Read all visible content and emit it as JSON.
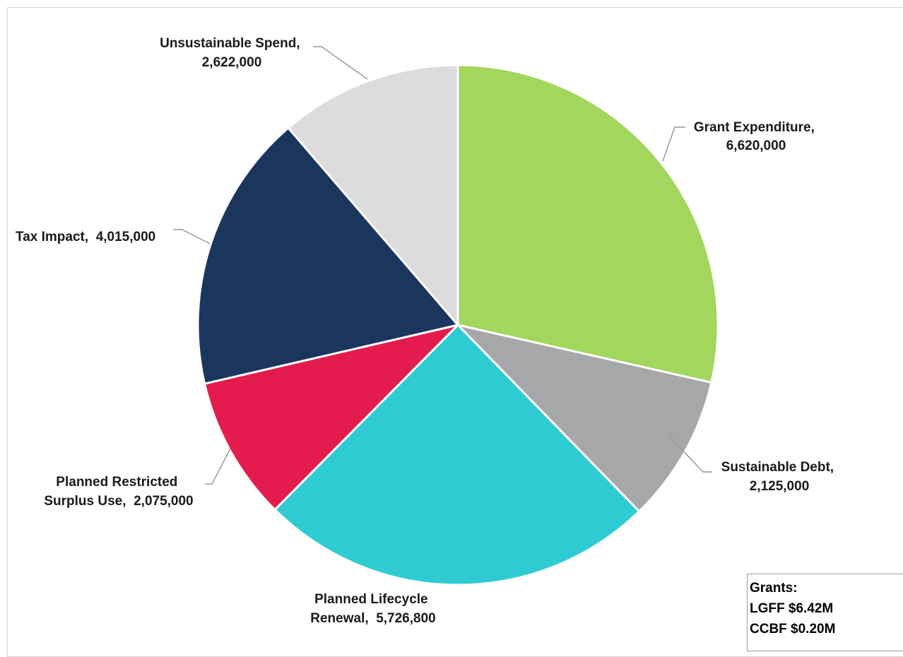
{
  "chart_data": {
    "type": "pie",
    "title": "",
    "slices": [
      {
        "label": "Grant Expenditure,",
        "value": 6620000,
        "value_text": "6,620,000",
        "color": "#a3d65c"
      },
      {
        "label": "Sustainable Debt,",
        "value": 2125000,
        "value_text": "2,125,000",
        "color": "#a6a7a9"
      },
      {
        "label": "Planned Lifecycle",
        "label_line2": "Renewal,",
        "value": 5726800,
        "value_text": "5,726,800",
        "color": "#2ecbd3"
      },
      {
        "label": "Planned Restricted",
        "label_line2": "Surplus Use,",
        "value": 2075000,
        "value_text": "2,075,000",
        "color": "#e41c4d"
      },
      {
        "label": "Tax Impact,",
        "value": 4015000,
        "value_text": "4,015,000",
        "color": "#1b365d"
      },
      {
        "label": "Unsustainable Spend,",
        "value": 2622000,
        "value_text": "2,622,000",
        "color": "#dcdcdc"
      }
    ],
    "start": "12 o'clock",
    "direction": "clockwise",
    "legend": "none"
  },
  "notes_box": {
    "title": "Grants:",
    "lines": [
      "LGFF $6.42M",
      "CCBF $0.20M"
    ]
  }
}
